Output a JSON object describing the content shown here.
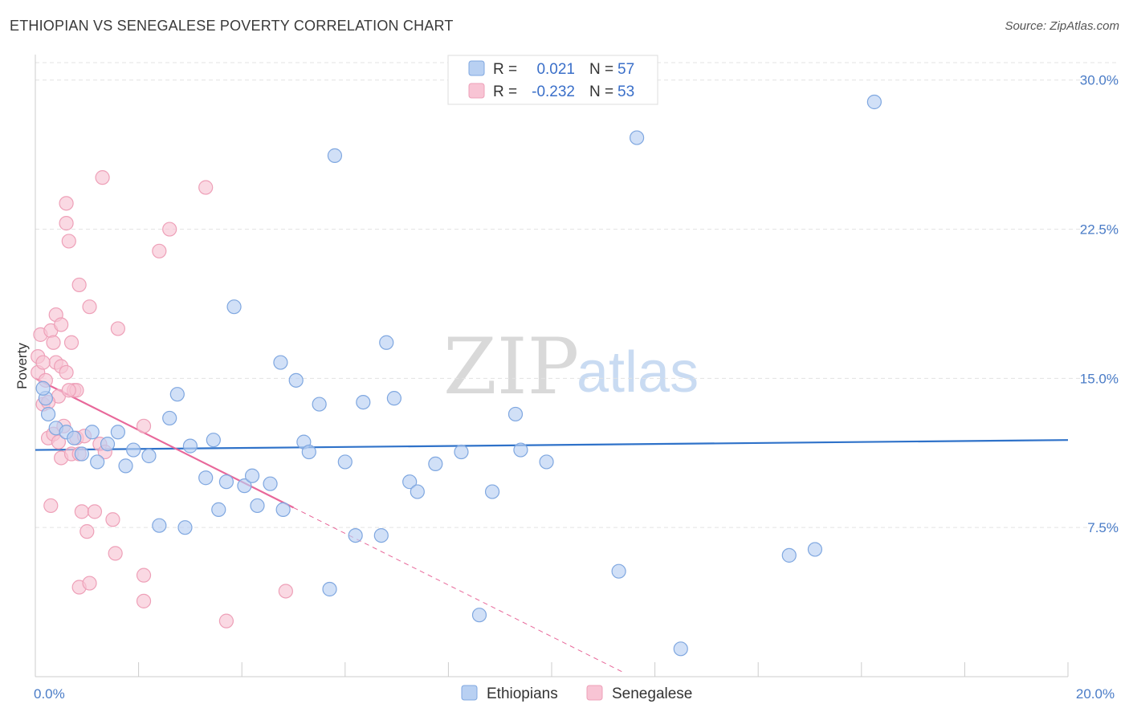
{
  "header": {
    "title": "ETHIOPIAN VS SENEGALESE POVERTY CORRELATION CHART",
    "source": "Source: ZipAtlas.com"
  },
  "legend": {
    "r_label": "R =",
    "n_label": "N =",
    "ethiopians": {
      "r": "0.021",
      "n": "57"
    },
    "senegalese": {
      "r": "-0.232",
      "n": "53"
    }
  },
  "watermark": {
    "zip": "ZIP",
    "atlas": "atlas"
  },
  "colors": {
    "ethiopians_fill": "#b8d0f2",
    "ethiopians_stroke": "#7fa7e0",
    "ethiopians_line": "#2f72c9",
    "senegalese_fill": "#f8c4d4",
    "senegalese_stroke": "#eea0b8",
    "senegalese_line": "#e8689a",
    "tick_label": "#4a7cc7",
    "grid": "#e3e3e3"
  },
  "chart_data": {
    "type": "scatter",
    "title": "ETHIOPIAN VS SENEGALESE POVERTY CORRELATION CHART",
    "xlabel": "",
    "ylabel": "Poverty",
    "xlim": [
      0,
      20
    ],
    "ylim": [
      0,
      31.2
    ],
    "y_ticks": [
      {
        "value": 7.5,
        "label": "7.5%"
      },
      {
        "value": 15.0,
        "label": "15.0%"
      },
      {
        "value": 22.5,
        "label": "22.5%"
      },
      {
        "value": 30.0,
        "label": "30.0%"
      }
    ],
    "x_tick_labels": [
      {
        "value": 0,
        "label": "0.0%"
      },
      {
        "value": 20,
        "label": "20.0%"
      }
    ],
    "x_minor_ticks": [
      0,
      2,
      4,
      6,
      8,
      10,
      12,
      14,
      16,
      18,
      20
    ],
    "grid": true,
    "legend_position": "top-center",
    "series": [
      {
        "name": "Ethiopians",
        "points": [
          [
            0.2,
            14.0
          ],
          [
            0.25,
            13.2
          ],
          [
            0.4,
            12.5
          ],
          [
            0.6,
            12.3
          ],
          [
            0.75,
            12.0
          ],
          [
            0.9,
            11.2
          ],
          [
            1.1,
            12.3
          ],
          [
            1.2,
            10.8
          ],
          [
            1.4,
            11.7
          ],
          [
            1.6,
            12.3
          ],
          [
            1.75,
            10.6
          ],
          [
            1.9,
            11.4
          ],
          [
            2.2,
            11.1
          ],
          [
            2.4,
            7.6
          ],
          [
            2.6,
            13.0
          ],
          [
            2.75,
            14.2
          ],
          [
            2.9,
            7.5
          ],
          [
            3.0,
            11.6
          ],
          [
            3.3,
            10.0
          ],
          [
            3.45,
            11.9
          ],
          [
            3.55,
            8.4
          ],
          [
            3.7,
            9.8
          ],
          [
            3.85,
            18.6
          ],
          [
            4.05,
            9.6
          ],
          [
            4.2,
            10.1
          ],
          [
            4.3,
            8.6
          ],
          [
            4.55,
            9.7
          ],
          [
            4.75,
            15.8
          ],
          [
            4.8,
            8.4
          ],
          [
            5.05,
            14.9
          ],
          [
            5.2,
            11.8
          ],
          [
            5.3,
            11.3
          ],
          [
            5.5,
            13.7
          ],
          [
            5.7,
            4.4
          ],
          [
            5.8,
            26.2
          ],
          [
            6.0,
            10.8
          ],
          [
            6.2,
            7.1
          ],
          [
            6.35,
            13.8
          ],
          [
            6.7,
            7.1
          ],
          [
            6.8,
            16.8
          ],
          [
            6.95,
            14.0
          ],
          [
            7.25,
            9.8
          ],
          [
            7.4,
            9.3
          ],
          [
            7.75,
            10.7
          ],
          [
            8.25,
            11.3
          ],
          [
            8.6,
            3.1
          ],
          [
            8.85,
            9.3
          ],
          [
            9.3,
            13.2
          ],
          [
            9.4,
            11.4
          ],
          [
            9.9,
            10.8
          ],
          [
            11.3,
            5.3
          ],
          [
            11.65,
            27.1
          ],
          [
            12.5,
            1.4
          ],
          [
            14.6,
            6.1
          ],
          [
            15.1,
            6.4
          ],
          [
            16.25,
            28.9
          ],
          [
            0.15,
            14.5
          ]
        ]
      },
      {
        "name": "Senegalese",
        "points": [
          [
            0.05,
            16.1
          ],
          [
            0.05,
            15.3
          ],
          [
            0.1,
            17.2
          ],
          [
            0.15,
            13.7
          ],
          [
            0.2,
            14.9
          ],
          [
            0.25,
            12.0
          ],
          [
            0.3,
            17.4
          ],
          [
            0.3,
            8.6
          ],
          [
            0.35,
            16.8
          ],
          [
            0.35,
            12.2
          ],
          [
            0.4,
            15.8
          ],
          [
            0.4,
            18.2
          ],
          [
            0.45,
            14.1
          ],
          [
            0.5,
            17.7
          ],
          [
            0.5,
            15.6
          ],
          [
            0.5,
            11.0
          ],
          [
            0.55,
            12.6
          ],
          [
            0.6,
            23.8
          ],
          [
            0.6,
            22.8
          ],
          [
            0.6,
            15.3
          ],
          [
            0.65,
            21.9
          ],
          [
            0.7,
            16.8
          ],
          [
            0.7,
            11.2
          ],
          [
            0.75,
            14.4
          ],
          [
            0.8,
            14.4
          ],
          [
            0.8,
            12.0
          ],
          [
            0.85,
            11.2
          ],
          [
            0.85,
            19.7
          ],
          [
            0.85,
            4.5
          ],
          [
            0.9,
            8.3
          ],
          [
            0.95,
            12.1
          ],
          [
            1.0,
            7.3
          ],
          [
            1.05,
            18.6
          ],
          [
            1.05,
            4.7
          ],
          [
            1.15,
            8.3
          ],
          [
            1.25,
            11.7
          ],
          [
            1.3,
            25.1
          ],
          [
            1.35,
            11.3
          ],
          [
            1.5,
            7.9
          ],
          [
            1.55,
            6.2
          ],
          [
            1.6,
            17.5
          ],
          [
            2.1,
            3.8
          ],
          [
            2.1,
            5.1
          ],
          [
            2.1,
            12.6
          ],
          [
            2.4,
            21.4
          ],
          [
            2.6,
            22.5
          ],
          [
            3.3,
            24.6
          ],
          [
            3.7,
            2.8
          ],
          [
            4.85,
            4.3
          ],
          [
            0.15,
            15.8
          ],
          [
            0.25,
            13.8
          ],
          [
            0.45,
            11.8
          ],
          [
            0.65,
            14.4
          ]
        ]
      }
    ],
    "trend_lines": [
      {
        "series": "Ethiopians",
        "from": [
          0,
          11.4
        ],
        "to": [
          20,
          11.9
        ],
        "style": "solid"
      },
      {
        "series": "Senegalese",
        "from": [
          0,
          15.0
        ],
        "to": [
          5.0,
          8.5
        ],
        "style": "solid"
      },
      {
        "series": "Senegalese",
        "from": [
          5.0,
          8.5
        ],
        "to": [
          11.4,
          0.2
        ],
        "style": "dashed"
      }
    ]
  }
}
